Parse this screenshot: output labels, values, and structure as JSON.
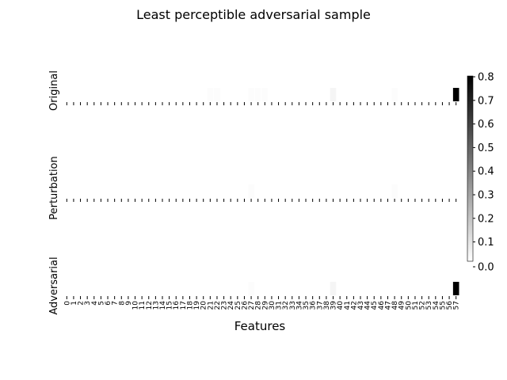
{
  "chart_data": {
    "type": "heatmap",
    "title": "Least perceptible adversarial sample",
    "xlabel": "Features",
    "ylabel": "",
    "rows": [
      "Original",
      "Perturbation",
      "Adversarial"
    ],
    "x_tick_labels": [
      "0",
      "1",
      "2",
      "3",
      "4",
      "5",
      "6",
      "7",
      "8",
      "9",
      "10",
      "11",
      "12",
      "13",
      "14",
      "15",
      "16",
      "17",
      "18",
      "19",
      "20",
      "21",
      "22",
      "23",
      "24",
      "25",
      "26",
      "27",
      "28",
      "29",
      "30",
      "31",
      "32",
      "33",
      "34",
      "35",
      "36",
      "37",
      "38",
      "39",
      "40",
      "41",
      "42",
      "43",
      "44",
      "45",
      "46",
      "47",
      "48",
      "49",
      "50",
      "51",
      "52",
      "53",
      "54",
      "55",
      "56",
      "57"
    ],
    "colormap": "grayscale (white to black)",
    "colorbar": {
      "min": 0.0,
      "max": 0.8,
      "tick_labels": [
        "0.0",
        "0.1",
        "0.2",
        "0.3",
        "0.4",
        "0.5",
        "0.6",
        "0.7",
        "0.8"
      ]
    },
    "values": [
      [
        0,
        0,
        0,
        0,
        0,
        0,
        0,
        0,
        0,
        0,
        0,
        0,
        0,
        0,
        0,
        0,
        0,
        0,
        0,
        0,
        0,
        0.01,
        0.01,
        0,
        0,
        0,
        0,
        0.01,
        0.01,
        0.01,
        0,
        0,
        0,
        0,
        0,
        0,
        0,
        0,
        0,
        0.03,
        0,
        0,
        0,
        0,
        0,
        0,
        0,
        0,
        0.01,
        0,
        0,
        0,
        0,
        0,
        0,
        0,
        0,
        0.8
      ],
      [
        0,
        0,
        0,
        0,
        0,
        0,
        0,
        0,
        0,
        0,
        0,
        0,
        0,
        0,
        0,
        0,
        0,
        0,
        0,
        0,
        0,
        0,
        0,
        0,
        0,
        0,
        0,
        0.01,
        0,
        0,
        0,
        0,
        0,
        0,
        0,
        0,
        0,
        0,
        0,
        0,
        0,
        0,
        0,
        0,
        0,
        0,
        0,
        0,
        0.01,
        0,
        0,
        0,
        0,
        0,
        0,
        0,
        0,
        0
      ],
      [
        0,
        0,
        0,
        0,
        0,
        0,
        0,
        0,
        0,
        0,
        0,
        0,
        0,
        0,
        0,
        0,
        0,
        0,
        0,
        0,
        0,
        0,
        0,
        0,
        0,
        0,
        0,
        0.01,
        0,
        0,
        0,
        0,
        0,
        0,
        0,
        0,
        0,
        0,
        0,
        0.03,
        0,
        0,
        0,
        0,
        0,
        0,
        0,
        0,
        0,
        0,
        0,
        0,
        0,
        0,
        0,
        0,
        0,
        0.8
      ]
    ]
  }
}
